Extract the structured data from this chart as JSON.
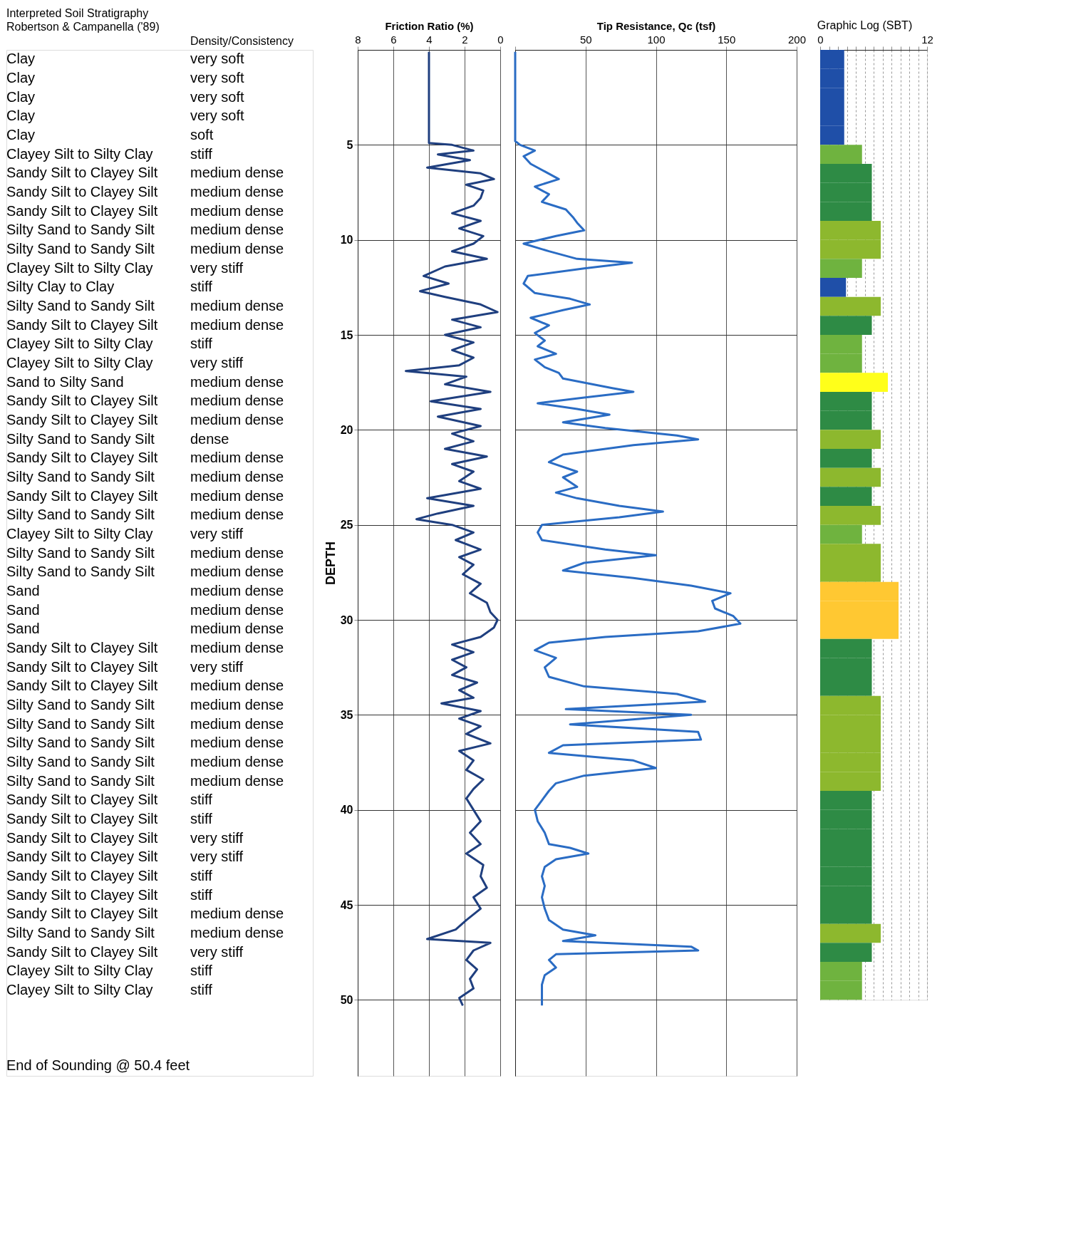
{
  "chart_data": [
    {
      "type": "other",
      "title": "Interpreted Soil Stratigraphy",
      "subtitle": "Robertson & Campanella ('89)",
      "annotations": [
        "Density/Consistency",
        "Clay",
        "very soft",
        "Clay",
        "very soft",
        "Clay",
        "very soft",
        "Clay",
        "very soft",
        "Clay",
        "soft",
        "Clayey Silt to Silty Clay",
        "stiff",
        "Sandy Silt to Clayey Silt",
        "medium dense",
        "Sandy Silt to Clayey Silt",
        "medium dense",
        "Sandy Silt to Clayey Silt",
        "medium dense",
        "Silty Sand to Sandy Silt",
        "medium dense",
        "Silty Sand to Sandy Silt",
        "medium dense",
        "Clayey Silt to Silty Clay",
        "very stiff",
        "Silty Clay to Clay",
        "stiff",
        "Silty Sand to Sandy Silt",
        "medium dense",
        "Sandy Silt to Clayey Silt",
        "medium dense",
        "Clayey Silt to Silty Clay",
        "stiff",
        "Clayey Silt to Silty Clay",
        "very stiff",
        "Sand to Silty Sand",
        "medium dense",
        "Sandy Silt to Clayey Silt",
        "medium dense",
        "Sandy Silt to Clayey Silt",
        "medium dense",
        "Silty Sand to Sandy Silt",
        "dense",
        "Sandy Silt to Clayey Silt",
        "medium dense",
        "Silty Sand to Sandy Silt",
        "medium dense",
        "Sandy Silt to Clayey Silt",
        "medium dense",
        "Silty Sand to Sandy Silt",
        "medium dense",
        "Clayey Silt to Silty Clay",
        "very stiff",
        "Silty Sand to Sandy Silt",
        "medium dense",
        "Silty Sand to Sandy Silt",
        "medium dense",
        "Sand",
        "medium dense",
        "Sand",
        "medium dense",
        "Sand",
        "medium dense",
        "Sandy Silt to Clayey Silt",
        "medium dense",
        "Sandy Silt to Clayey Silt",
        "very stiff",
        "Sandy Silt to Clayey Silt",
        "medium dense",
        "Silty Sand to Sandy Silt",
        "medium dense",
        "Silty Sand to Sandy Silt",
        "medium dense",
        "Silty Sand to Sandy Silt",
        "medium dense",
        "Silty Sand to Sandy Silt",
        "medium dense",
        "Silty Sand to Sandy Silt",
        "medium dense",
        "Sandy Silt to Clayey Silt",
        "stiff",
        "Sandy Silt to Clayey Silt",
        "stiff",
        "Sandy Silt to Clayey Silt",
        "very stiff",
        "Sandy Silt to Clayey Silt",
        "very stiff",
        "Sandy Silt to Clayey Silt",
        "stiff",
        "Sandy Silt to Clayey Silt",
        "stiff",
        "Sandy Silt to Clayey Silt",
        "medium dense",
        "Silty Sand to Sandy Silt",
        "medium dense",
        "Sandy Silt to Clayey Silt",
        "very stiff",
        "Clayey Silt to Silty Clay",
        "stiff",
        "Clayey Silt to Silty Clay",
        "stiff",
        "End of Sounding @ 50.4 feet"
      ]
    },
    {
      "type": "line",
      "xlabel": "Friction Ratio (%)",
      "xlim": [
        8,
        0
      ],
      "xticks": [
        8,
        6,
        4,
        2,
        0
      ],
      "ylabel": "DEPTH",
      "ylim": [
        54,
        0
      ],
      "yticks": [
        5,
        10,
        15,
        20,
        25,
        30,
        35,
        40,
        45,
        50
      ],
      "grid": true,
      "series": [
        {
          "color": "#1f3f7f",
          "x": [
            4.0,
            4.0,
            2.7,
            1.5,
            3.5,
            1.7,
            4.1,
            1.1,
            0.35,
            1.9,
            0.95,
            1.1,
            1.5,
            2.7,
            1.1,
            2.3,
            0.95,
            1.5,
            2.7,
            0.75,
            3.1,
            4.3,
            2.9,
            4.5,
            3.1,
            1.1,
            0.15,
            2.7,
            1.1,
            3.1,
            1.5,
            2.7,
            1.5,
            2.3,
            5.3,
            1.9,
            3.1,
            0.55,
            3.9,
            1.1,
            3.5,
            1.1,
            2.7,
            1.5,
            3.1,
            0.75,
            2.7,
            1.5,
            2.3,
            1.1,
            4.1,
            1.5,
            3.5,
            4.7,
            2.7,
            1.5,
            2.5,
            1.1,
            2.3,
            1.5,
            2.1,
            1.1,
            1.7,
            0.75,
            0.55,
            0.15,
            0.35,
            1.1,
            2.7,
            1.5,
            2.7,
            1.9,
            2.7,
            1.3,
            2.3,
            1.5,
            3.3,
            1.1,
            2.3,
            1.1,
            1.9,
            0.55,
            2.3,
            1.5,
            1.9,
            0.95,
            1.5,
            1.9,
            1.5,
            1.1,
            1.7,
            1.1,
            1.9,
            0.95,
            1.1,
            0.75,
            1.5,
            1.1,
            1.9,
            2.5,
            4.1,
            0.55,
            1.5,
            1.9,
            1.3,
            1.7,
            1.5,
            2.3,
            2.1
          ],
          "values": [
            0.1,
            4.9,
            5.0,
            5.3,
            5.5,
            5.8,
            6.2,
            6.5,
            6.8,
            7.1,
            7.4,
            7.8,
            8.2,
            8.6,
            9.0,
            9.4,
            9.8,
            10.2,
            10.6,
            11.0,
            11.4,
            11.9,
            12.3,
            12.7,
            13.0,
            13.4,
            13.8,
            14.2,
            14.6,
            15.0,
            15.4,
            15.8,
            16.2,
            16.6,
            16.9,
            17.2,
            17.6,
            18.0,
            18.5,
            18.9,
            19.3,
            19.8,
            20.2,
            20.6,
            21.0,
            21.4,
            21.8,
            22.2,
            22.7,
            23.1,
            23.6,
            24.0,
            24.4,
            24.7,
            25.0,
            25.4,
            25.8,
            26.3,
            26.7,
            27.1,
            27.6,
            28.1,
            28.6,
            29.1,
            29.6,
            30.0,
            30.4,
            30.9,
            31.3,
            31.7,
            32.1,
            32.5,
            32.9,
            33.3,
            33.7,
            34.1,
            34.4,
            34.8,
            35.2,
            35.6,
            36.0,
            36.5,
            36.9,
            37.4,
            37.9,
            38.4,
            38.9,
            39.4,
            40.0,
            40.6,
            41.2,
            41.8,
            42.3,
            42.9,
            43.5,
            44.1,
            44.6,
            45.2,
            45.8,
            46.3,
            46.8,
            47.0,
            47.4,
            47.9,
            48.4,
            48.9,
            49.4,
            49.9,
            50.3
          ]
        }
      ]
    },
    {
      "type": "line",
      "xlabel": "Tip Resistance, Qc (tsf)",
      "xlim": [
        0,
        200
      ],
      "xticks": [
        {
          "value": 0,
          "label": null
        },
        50,
        100,
        150,
        200
      ],
      "ylim": [
        54,
        0
      ],
      "yticks": [
        5,
        10,
        15,
        20,
        25,
        30,
        35,
        40,
        45,
        50
      ],
      "grid": true,
      "tick_labels": "x",
      "series": [
        {
          "color": "#2a6cc4",
          "x": [
            0,
            0,
            3.5,
            14,
            6,
            11,
            21,
            31,
            14,
            24,
            19,
            36,
            41,
            44,
            49,
            29,
            6,
            24,
            44,
            83,
            49,
            9,
            6,
            14,
            39,
            53,
            34,
            11,
            24,
            14,
            21,
            16,
            29,
            14,
            21,
            31,
            34,
            69,
            84,
            49,
            16,
            44,
            67,
            34,
            64,
            115,
            130,
            84,
            34,
            24,
            44,
            34,
            44,
            29,
            44,
            74,
            105,
            74,
            19,
            16,
            19,
            64,
            100,
            49,
            34,
            84,
            125,
            153,
            140,
            142,
            155,
            160,
            130,
            64,
            24,
            14,
            29,
            21,
            24,
            49,
            115,
            135,
            36,
            125,
            39,
            130,
            132,
            34,
            24,
            84,
            100,
            49,
            29,
            24,
            19,
            14,
            16,
            21,
            24,
            39,
            52,
            29,
            21,
            19,
            21,
            19,
            21,
            24,
            34,
            57,
            34,
            125,
            130,
            29,
            24,
            29,
            21,
            19,
            19,
            19
          ],
          "values": [
            0.1,
            4.8,
            5.0,
            5.3,
            5.6,
            6.0,
            6.4,
            6.8,
            7.2,
            7.6,
            8.0,
            8.4,
            8.8,
            9.1,
            9.5,
            9.8,
            10.2,
            10.6,
            11.0,
            11.2,
            11.5,
            11.9,
            12.3,
            12.8,
            13.1,
            13.4,
            13.7,
            14.1,
            14.5,
            14.9,
            15.3,
            15.6,
            16.0,
            16.3,
            16.7,
            17.0,
            17.3,
            17.8,
            18.0,
            18.3,
            18.6,
            18.9,
            19.2,
            19.6,
            19.9,
            20.3,
            20.5,
            20.8,
            21.3,
            21.7,
            22.2,
            22.5,
            23.0,
            23.3,
            23.6,
            24.0,
            24.3,
            24.6,
            25.0,
            25.4,
            25.8,
            26.3,
            26.6,
            27.0,
            27.4,
            27.8,
            28.2,
            28.6,
            29.0,
            29.4,
            29.8,
            30.2,
            30.6,
            30.9,
            31.2,
            31.6,
            32.0,
            32.5,
            33.0,
            33.5,
            33.9,
            34.3,
            34.7,
            35.0,
            35.5,
            35.9,
            36.3,
            36.6,
            37.0,
            37.4,
            37.8,
            38.2,
            38.6,
            39.0,
            39.5,
            40.0,
            40.6,
            41.2,
            41.8,
            42.0,
            42.3,
            42.6,
            43.0,
            43.5,
            44.0,
            44.6,
            45.2,
            45.8,
            46.3,
            46.6,
            46.9,
            47.2,
            47.4,
            47.6,
            47.9,
            48.3,
            48.7,
            49.2,
            49.8,
            50.3
          ]
        }
      ]
    },
    {
      "type": "bar",
      "orientation": "horizontal",
      "title": "Graphic Log (SBT)",
      "xlim": [
        0,
        12
      ],
      "xticks": [
        0,
        {
          "value": 1,
          "label": null
        },
        {
          "value": 2,
          "label": null
        },
        {
          "value": 3,
          "label": null
        },
        {
          "value": 4,
          "label": null
        },
        {
          "value": 5,
          "label": null
        },
        {
          "value": 6,
          "label": null
        },
        {
          "value": 7,
          "label": null
        },
        {
          "value": 8,
          "label": null
        },
        {
          "value": 9,
          "label": null
        },
        {
          "value": 10,
          "label": null
        },
        {
          "value": 11,
          "label": null
        },
        12
      ],
      "grid": "x",
      "tick_labels": "x",
      "categories": [
        null,
        null,
        null,
        null,
        null,
        null,
        null,
        null,
        null,
        null,
        null,
        null,
        null,
        null,
        null,
        null,
        null,
        null,
        null,
        null,
        null,
        null,
        null,
        null,
        null,
        null,
        null,
        null,
        null,
        null,
        null,
        null,
        null,
        null,
        null,
        null,
        null,
        null,
        null,
        null,
        null,
        null,
        null,
        null,
        null,
        null,
        null,
        null,
        null,
        null
      ],
      "values": [
        2.7,
        2.7,
        2.7,
        2.7,
        2.7,
        4.7,
        5.8,
        5.8,
        5.8,
        6.8,
        6.8,
        4.7,
        2.9,
        6.8,
        5.8,
        4.7,
        4.7,
        7.6,
        5.8,
        5.8,
        6.8,
        5.8,
        6.8,
        5.8,
        6.8,
        4.7,
        6.8,
        6.8,
        8.8,
        8.8,
        8.8,
        5.8,
        5.8,
        5.8,
        6.8,
        6.8,
        6.8,
        6.8,
        6.8,
        5.8,
        5.8,
        5.8,
        5.8,
        5.8,
        5.8,
        5.8,
        6.8,
        5.8,
        4.7,
        4.7
      ],
      "colors": [
        "#1f4fa8",
        "#1f4fa8",
        "#1f4fa8",
        "#1f4fa8",
        "#1f4fa8",
        "#6fb33f",
        "#2e8b45",
        "#2e8b45",
        "#2e8b45",
        "#8db82e",
        "#8db82e",
        "#6fb33f",
        "#1f4fa8",
        "#8db82e",
        "#2e8b45",
        "#6fb33f",
        "#6fb33f",
        "#ffff1a",
        "#2e8b45",
        "#2e8b45",
        "#8db82e",
        "#2e8b45",
        "#8db82e",
        "#2e8b45",
        "#8db82e",
        "#6fb33f",
        "#8db82e",
        "#8db82e",
        "#ffc832",
        "#ffc832",
        "#ffc832",
        "#2e8b45",
        "#2e8b45",
        "#2e8b45",
        "#8db82e",
        "#8db82e",
        "#8db82e",
        "#8db82e",
        "#8db82e",
        "#2e8b45",
        "#2e8b45",
        "#2e8b45",
        "#2e8b45",
        "#2e8b45",
        "#2e8b45",
        "#2e8b45",
        "#8db82e",
        "#2e8b45",
        "#6fb33f",
        "#6fb33f"
      ]
    }
  ]
}
